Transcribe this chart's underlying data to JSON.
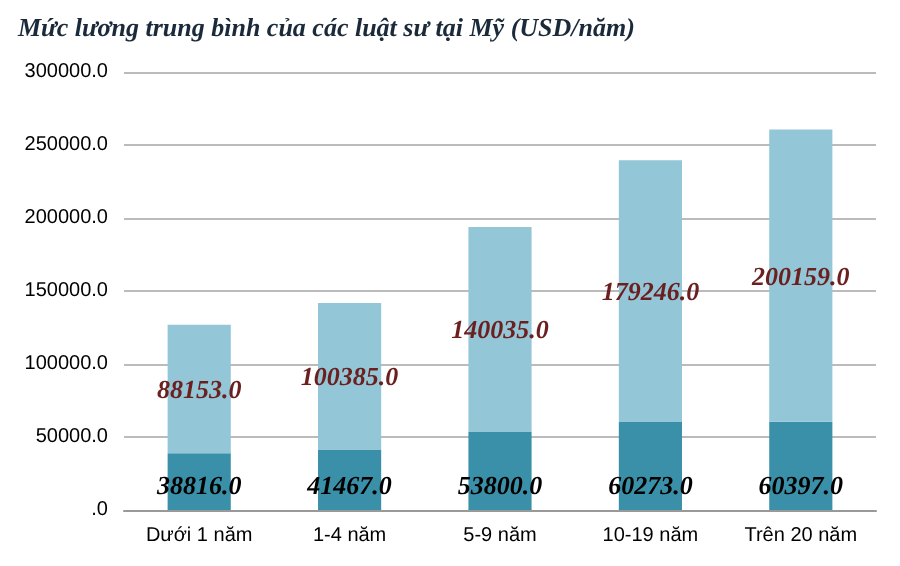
{
  "chart_data": {
    "type": "bar",
    "title": "Mức lương trung bình của các luật sư tại Mỹ (USD/năm)",
    "categories": [
      "Dưới 1 năm",
      "1-4 năm",
      "5-9 năm",
      "10-19 năm",
      "Trên 20 năm"
    ],
    "stacked": true,
    "series": [
      {
        "color": "#3a90a8",
        "values": [
          38816,
          41467,
          53800,
          60273,
          60397
        ],
        "value_labels": [
          "38816.0",
          "41467.0",
          "53800.0",
          "60273.0",
          "60397.0"
        ]
      },
      {
        "color": "#93c6d7",
        "values": [
          88153,
          100385,
          140035,
          179246,
          200159
        ],
        "value_labels": [
          "88153.0",
          "100385.0",
          "140035.0",
          "179246.0",
          "200159.0"
        ]
      }
    ],
    "ylim": [
      0,
      300000
    ],
    "yticks": [
      {
        "value": 0,
        "label": ".0"
      },
      {
        "value": 50000,
        "label": "50000.0"
      },
      {
        "value": 100000,
        "label": "100000.0"
      },
      {
        "value": 150000,
        "label": "150000.0"
      },
      {
        "value": 200000,
        "label": "200000.0"
      },
      {
        "value": 250000,
        "label": "250000.0"
      },
      {
        "value": 300000,
        "label": "300000.0"
      }
    ],
    "grid": "y"
  }
}
